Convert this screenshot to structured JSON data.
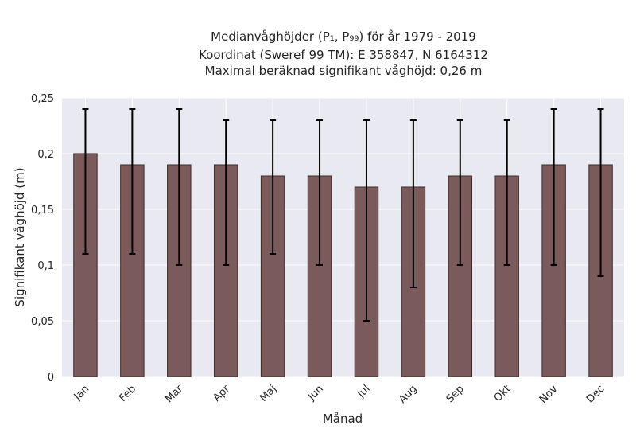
{
  "chart_data": {
    "type": "bar",
    "title_lines": [
      "Medianvåghöjder (P₁, P₉₉) för år 1979 - 2019",
      "Koordinat (Sweref 99 TM): E 358847, N 6164312",
      "Maximal beräknad signifikant våghöjd: 0,26 m"
    ],
    "xlabel": "Månad",
    "ylabel": "Signifikant våghöjd (m)",
    "categories": [
      "Jan",
      "Feb",
      "Mar",
      "Apr",
      "Maj",
      "Jun",
      "Jul",
      "Aug",
      "Sep",
      "Okt",
      "Nov",
      "Dec"
    ],
    "values": [
      0.2,
      0.19,
      0.19,
      0.19,
      0.18,
      0.18,
      0.17,
      0.17,
      0.18,
      0.18,
      0.19,
      0.19
    ],
    "error_low": [
      0.11,
      0.11,
      0.1,
      0.1,
      0.11,
      0.1,
      0.05,
      0.08,
      0.1,
      0.1,
      0.1,
      0.09
    ],
    "error_high": [
      0.24,
      0.24,
      0.24,
      0.23,
      0.23,
      0.23,
      0.23,
      0.23,
      0.23,
      0.23,
      0.24,
      0.24
    ],
    "ylim": [
      0,
      0.25
    ],
    "yticks": [
      0,
      0.05,
      0.1,
      0.15,
      0.2,
      0.25
    ],
    "ytick_labels": [
      "0",
      "0,05",
      "0,1",
      "0,15",
      "0,2",
      "0,25"
    ],
    "grid": true,
    "colors": {
      "bar": "#7b5a5c",
      "bar_edge": "#3d2c2d",
      "error_bar": "#000000",
      "plot_background": "#e9e9f1",
      "grid": "#ffffff"
    }
  }
}
